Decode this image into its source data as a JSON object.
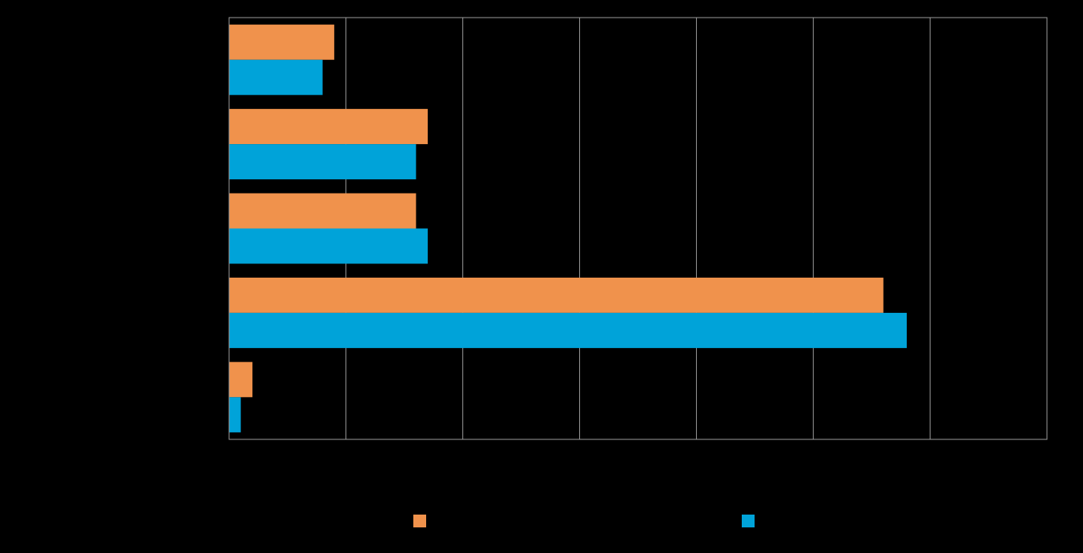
{
  "chart_data": {
    "type": "bar",
    "orientation": "horizontal",
    "title": "",
    "xlabel": "",
    "ylabel": "",
    "categories": [
      "",
      "",
      "",
      "",
      ""
    ],
    "xlim": [
      0,
      70
    ],
    "grid": true,
    "legend_position": "bottom",
    "series": [
      {
        "name": "",
        "color": "#F0924C",
        "values": [
          9.0,
          17.0,
          16.0,
          56.0,
          2.0
        ]
      },
      {
        "name": "",
        "color": "#00A3D9",
        "values": [
          8.0,
          16.0,
          17.0,
          58.0,
          1.0
        ]
      }
    ]
  }
}
